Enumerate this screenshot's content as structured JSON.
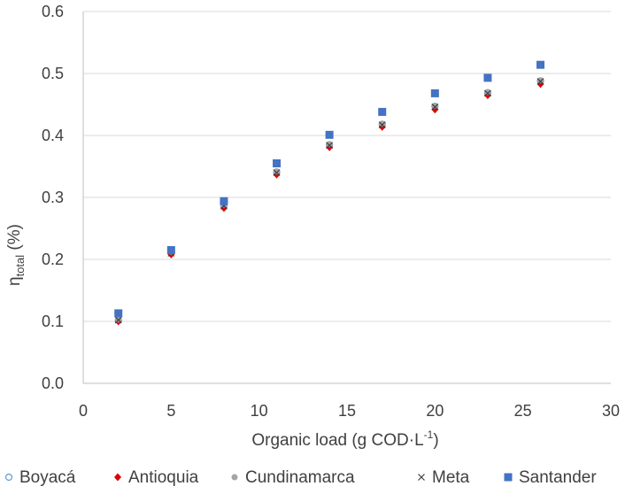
{
  "chart_data": {
    "type": "scatter",
    "title": "",
    "xlabel": {
      "prefix": "Organic load (g COD·L",
      "superscript": "-1",
      "suffix": ")"
    },
    "ylabel": {
      "prefix": "η",
      "subscript": "total",
      "suffix": " (%)"
    },
    "xlim": [
      0,
      30
    ],
    "ylim": [
      0,
      0.6
    ],
    "x_ticks": [
      0,
      5,
      10,
      15,
      20,
      25,
      30
    ],
    "y_ticks": [
      0.0,
      0.1,
      0.2,
      0.3,
      0.4,
      0.5,
      0.6
    ],
    "x_tick_labels": [
      "0",
      "5",
      "10",
      "15",
      "20",
      "25",
      "30"
    ],
    "y_tick_labels": [
      "0.0",
      "0.1",
      "0.2",
      "0.3",
      "0.4",
      "0.5",
      "0.6"
    ],
    "grid": "horizontal",
    "legend_position": "bottom",
    "x": [
      2,
      5,
      8,
      11,
      14,
      17,
      20,
      23,
      26
    ],
    "series": [
      {
        "name": "Boyacá",
        "marker": "open-circle",
        "color": "#5b9bd5",
        "values": [
          0.102,
          0.211,
          0.287,
          0.341,
          0.385,
          0.418,
          0.447,
          0.469,
          0.488
        ]
      },
      {
        "name": "Antioquia",
        "marker": "diamond",
        "color": "#e00000",
        "values": [
          0.1,
          0.208,
          0.283,
          0.337,
          0.381,
          0.414,
          0.442,
          0.465,
          0.483
        ]
      },
      {
        "name": "Cundinamarca",
        "marker": "filled-circle",
        "color": "#a5a5a5",
        "values": [
          0.103,
          0.212,
          0.288,
          0.342,
          0.386,
          0.419,
          0.448,
          0.47,
          0.489
        ]
      },
      {
        "name": "Meta",
        "marker": "x",
        "color": "#404040",
        "values": [
          0.102,
          0.21,
          0.286,
          0.34,
          0.384,
          0.417,
          0.446,
          0.468,
          0.487
        ]
      },
      {
        "name": "Santander",
        "marker": "square",
        "color": "#4472c4",
        "values": [
          0.113,
          0.215,
          0.294,
          0.355,
          0.401,
          0.438,
          0.468,
          0.493,
          0.514
        ]
      }
    ]
  }
}
